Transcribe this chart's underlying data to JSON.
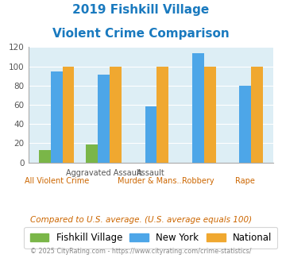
{
  "title_line1": "2019 Fishkill Village",
  "title_line2": "Violent Crime Comparison",
  "title_color": "#1a7abf",
  "categories": [
    "All Violent Crime",
    "Aggravated Assault",
    "Murder & Mans...",
    "Robbery",
    "Rape"
  ],
  "fishkill_values": [
    13,
    19,
    0,
    0,
    0
  ],
  "newyork_values": [
    95,
    91,
    58,
    114,
    80
  ],
  "national_values": [
    100,
    100,
    100,
    100,
    100
  ],
  "fishkill_color": "#7ab648",
  "newyork_color": "#4da6e8",
  "national_color": "#f0a830",
  "ylim": [
    0,
    120
  ],
  "yticks": [
    0,
    20,
    40,
    60,
    80,
    100,
    120
  ],
  "plot_bg_color": "#ddeef5",
  "legend_labels": [
    "Fishkill Village",
    "New York",
    "National"
  ],
  "note_text": "Compared to U.S. average. (U.S. average equals 100)",
  "note_color": "#cc6600",
  "footer_text": "© 2025 CityRating.com - https://www.cityrating.com/crime-statistics/",
  "footer_color": "#888888",
  "bar_width": 0.25
}
